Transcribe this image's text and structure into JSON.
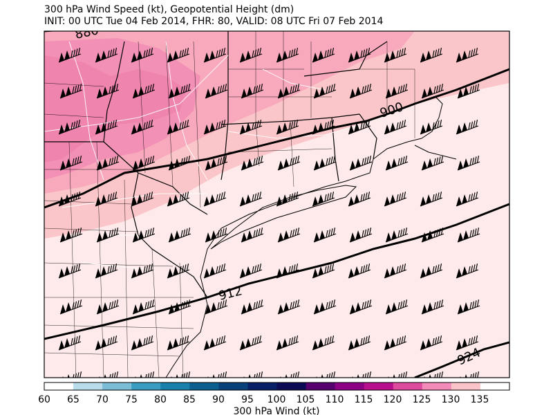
{
  "title_line1": "300 hPa Wind Speed (kt), Geopotential Height (dm)",
  "title_line2": "INIT: 00 UTC Tue 04 Feb 2014, FHR: 80, VALID: 08 UTC Fri 07 Feb 2014",
  "colorbar": {
    "label": "300 hPa Wind (kt)",
    "ticks": [
      "60",
      "65",
      "70",
      "75",
      "80",
      "85",
      "90",
      "95",
      "100",
      "105",
      "110",
      "115",
      "120",
      "125",
      "130",
      "135"
    ],
    "colors": [
      "#ffffff",
      "#b9dceb",
      "#7bbcd6",
      "#3a9cc0",
      "#1880aa",
      "#0a5f8f",
      "#08407a",
      "#061f66",
      "#0a0a55",
      "#55006e",
      "#8c0086",
      "#b8108c",
      "#de4a9e",
      "#f28bb9",
      "#fbc4c9",
      "#ffffff"
    ]
  },
  "contours": {
    "h880": "880",
    "h900": "900",
    "h912": "912",
    "h924": "924"
  }
}
